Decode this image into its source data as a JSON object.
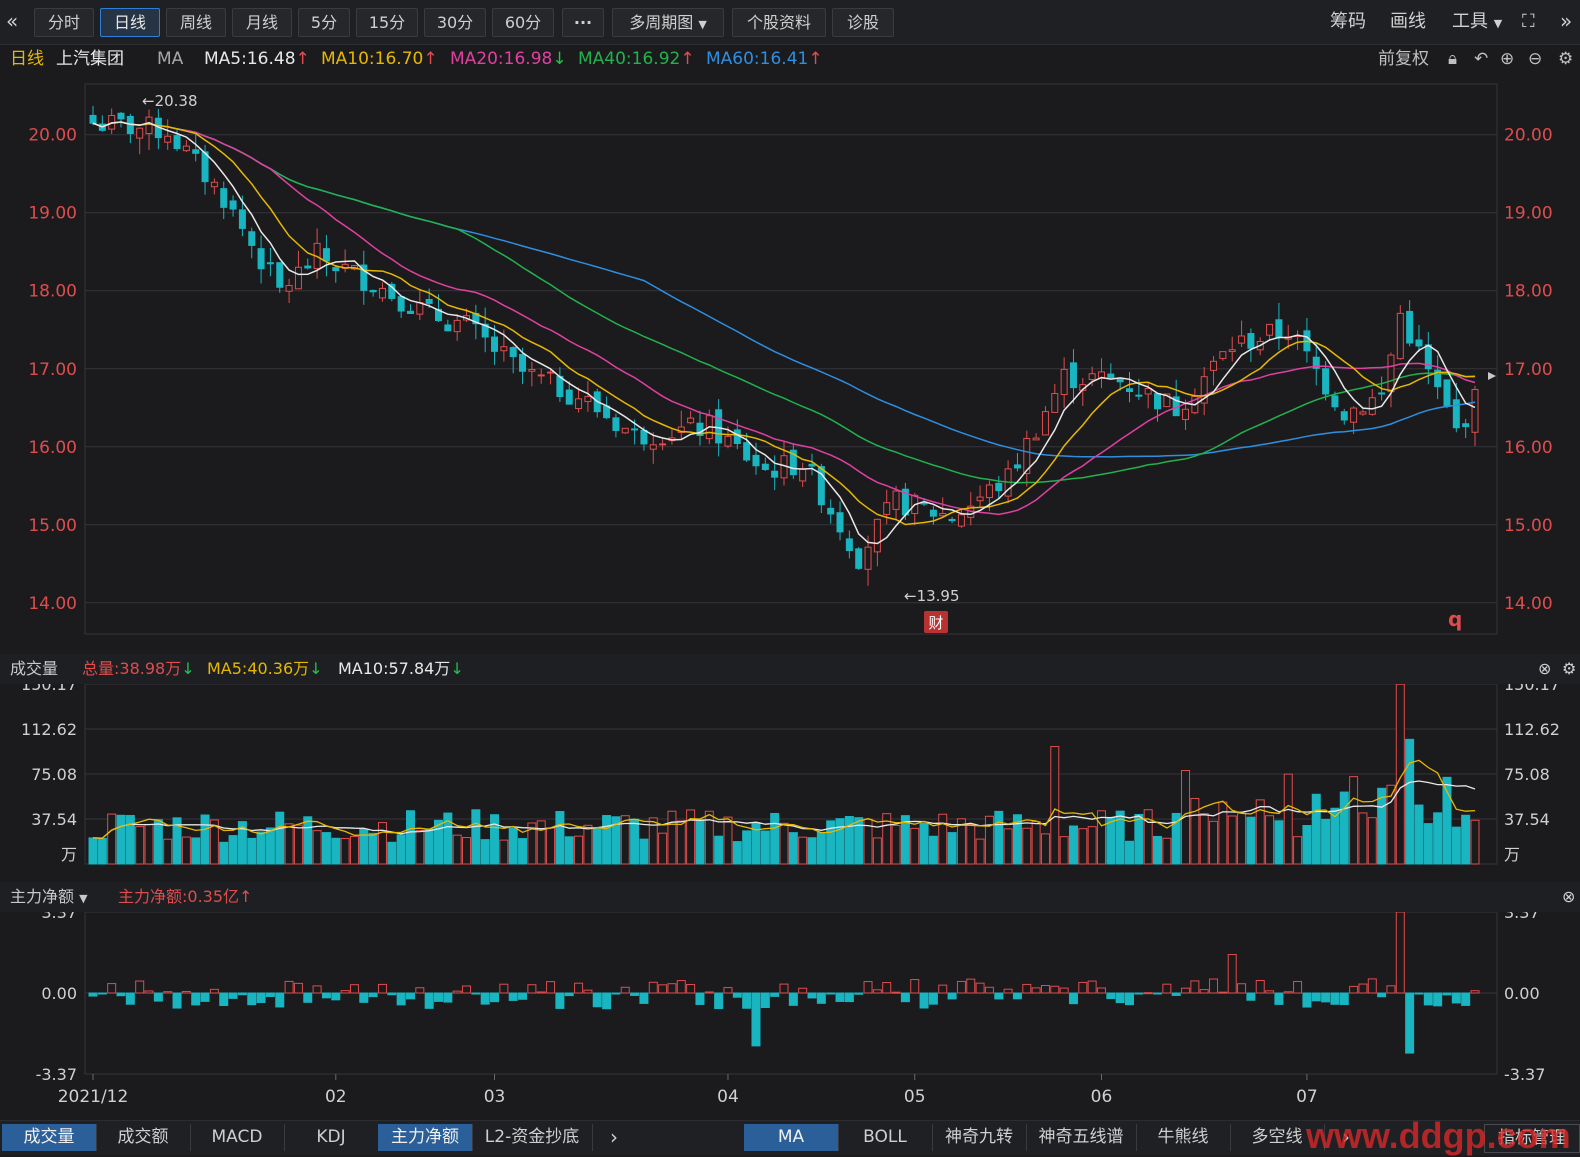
{
  "toolbar": {
    "back_icon": "double-chevron-left-icon",
    "periods": [
      "分时",
      "日线",
      "周线",
      "月线",
      "5分",
      "15分",
      "30分",
      "60分"
    ],
    "active_period": "日线",
    "more_label": "···",
    "multi_label": "多周期图",
    "profile_label": "个股资料",
    "diagnose_label": "诊股",
    "chip_label": "筹码",
    "draw_label": "画线",
    "tools_label": "工具",
    "fullscreen_icon": "fullscreen-icon",
    "forward_icon": "double-chevron-right-icon"
  },
  "ma_bar": {
    "period": "日线",
    "stock_name": "上汽集团",
    "indicator": "MA",
    "ma5": "MA5:16.48",
    "ma10": "MA10:16.70",
    "ma20": "MA20:16.98",
    "ma40": "MA40:16.92",
    "ma60": "MA60:16.41",
    "adjust": "前复权"
  },
  "colors": {
    "up": "#e04c4c",
    "down": "#19b5c0",
    "ma5": "#e8e8e8",
    "ma10": "#e6b800",
    "ma20": "#e040a0",
    "ma40": "#22b24c",
    "ma60": "#2e8fe0"
  },
  "volume_panel": {
    "title": "成交量",
    "total": "总量:38.98万",
    "ma5": "MA5:40.36万",
    "ma10": "MA10:57.84万",
    "ticks": [
      "150.17",
      "112.62",
      "75.08",
      "37.54",
      "万"
    ]
  },
  "fund_panel": {
    "title": "主力净额",
    "value": "主力净额:0.35亿",
    "ticks": [
      "3.37",
      "0.00",
      "-3.37"
    ]
  },
  "price_axis": [
    "20.00",
    "19.00",
    "18.00",
    "17.00",
    "16.00",
    "15.00",
    "14.00"
  ],
  "annotations": {
    "high": "←20.38",
    "low": "←13.95",
    "finance_badge": "财",
    "q_marker": "q"
  },
  "date_axis": [
    "2021/12",
    "02",
    "03",
    "04",
    "05",
    "06",
    "07"
  ],
  "bottom_tabs_left": [
    "成交量",
    "成交额",
    "MACD",
    "KDJ",
    "主力净额",
    "L2-资金抄底"
  ],
  "bottom_tabs_right": [
    "MA",
    "BOLL",
    "神奇九转",
    "神奇五线谱",
    "牛熊线",
    "多空线"
  ],
  "indicator_manage": "指标管理",
  "watermark": "www.ddgp.com",
  "chart_data": {
    "type": "candlestick",
    "y_range": [
      13.6,
      20.65
    ],
    "volume_range": [
      0,
      150.17
    ],
    "fund_range": [
      -3.37,
      3.37
    ],
    "anchors": [
      [
        0,
        20.15
      ],
      [
        8,
        20.05
      ],
      [
        14,
        19.2
      ],
      [
        20,
        18.0
      ],
      [
        24,
        18.45
      ],
      [
        30,
        18.1
      ],
      [
        36,
        17.7
      ],
      [
        40,
        17.55
      ],
      [
        46,
        16.95
      ],
      [
        52,
        16.65
      ],
      [
        58,
        16.15
      ],
      [
        66,
        16.25
      ],
      [
        72,
        15.7
      ],
      [
        76,
        15.8
      ],
      [
        82,
        14.6
      ],
      [
        86,
        15.3
      ],
      [
        92,
        15.1
      ],
      [
        98,
        15.6
      ],
      [
        104,
        16.9
      ],
      [
        110,
        16.85
      ],
      [
        116,
        16.5
      ],
      [
        122,
        17.3
      ],
      [
        128,
        17.5
      ],
      [
        134,
        16.45
      ],
      [
        138,
        16.65
      ],
      [
        140,
        17.7
      ],
      [
        146,
        16.2
      ],
      [
        148,
        16.6
      ]
    ]
  }
}
